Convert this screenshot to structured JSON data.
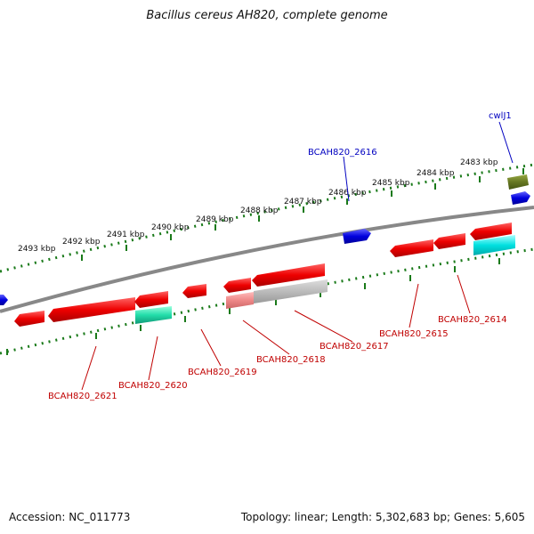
{
  "title": "Bacillus cereus AH820, complete genome",
  "footer": {
    "accession": "Accession: NC_011773",
    "summary": "Topology: linear; Length: 5,302,683 bp; Genes: 5,605"
  },
  "ruler_labels": [
    "2493 kbp",
    "2492 kbp",
    "2491 kbp",
    "2490 kbp",
    "2489 kbp",
    "2488 kbp",
    "2487 kbp",
    "2486 kbp",
    "2485 kbp",
    "2484 kbp",
    "2483 kbp"
  ],
  "gene_labels": {
    "top": [
      "cwlJ1",
      "BCAH820_2616"
    ],
    "bottom": [
      "BCAH820_2621",
      "BCAH820_2620",
      "BCAH820_2619",
      "BCAH820_2618",
      "BCAH820_2617",
      "BCAH820_2615",
      "BCAH820_2614"
    ]
  },
  "colors": {
    "cds_red": "#ee0000",
    "cds_blue": "#0000dd",
    "cds_olive": "#667722",
    "cds_cyan": "#00e0e0",
    "cds_teal": "#22ddaa",
    "pseudo_grey": "#bbbbbb",
    "ruler_green": "#1a7a1a",
    "backbone_grey": "#888888"
  }
}
